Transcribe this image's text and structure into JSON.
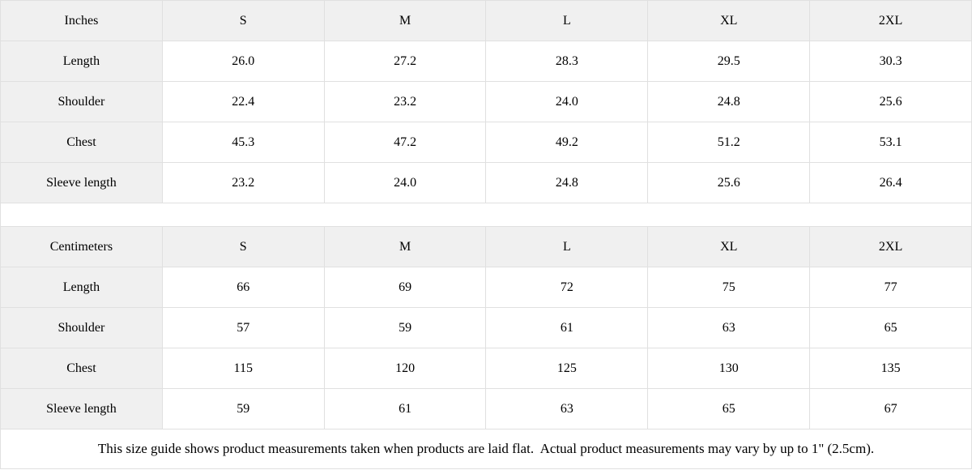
{
  "styles": {
    "header_bg": "#f0f0f0",
    "border_color": "#e0e0e0",
    "text_color": "#000000"
  },
  "tables": [
    {
      "unit_label": "Inches",
      "columns": [
        "S",
        "M",
        "L",
        "XL",
        "2XL"
      ],
      "rows": [
        {
          "label": "Length",
          "values": [
            "26.0",
            "27.2",
            "28.3",
            "29.5",
            "30.3"
          ]
        },
        {
          "label": "Shoulder",
          "values": [
            "22.4",
            "23.2",
            "24.0",
            "24.8",
            "25.6"
          ]
        },
        {
          "label": "Chest",
          "values": [
            "45.3",
            "47.2",
            "49.2",
            "51.2",
            "53.1"
          ]
        },
        {
          "label": "Sleeve length",
          "values": [
            "23.2",
            "24.0",
            "24.8",
            "25.6",
            "26.4"
          ]
        }
      ]
    },
    {
      "unit_label": "Centimeters",
      "columns": [
        "S",
        "M",
        "L",
        "XL",
        "2XL"
      ],
      "rows": [
        {
          "label": "Length",
          "values": [
            "66",
            "69",
            "72",
            "75",
            "77"
          ]
        },
        {
          "label": "Shoulder",
          "values": [
            "57",
            "59",
            "61",
            "63",
            "65"
          ]
        },
        {
          "label": "Chest",
          "values": [
            "115",
            "120",
            "125",
            "130",
            "135"
          ]
        },
        {
          "label": "Sleeve length",
          "values": [
            "59",
            "61",
            "63",
            "65",
            "67"
          ]
        }
      ]
    }
  ],
  "footer": {
    "note": "This size guide shows product measurements taken when products are laid flat.  Actual product measurements may vary by up to 1\" (2.5cm)."
  }
}
